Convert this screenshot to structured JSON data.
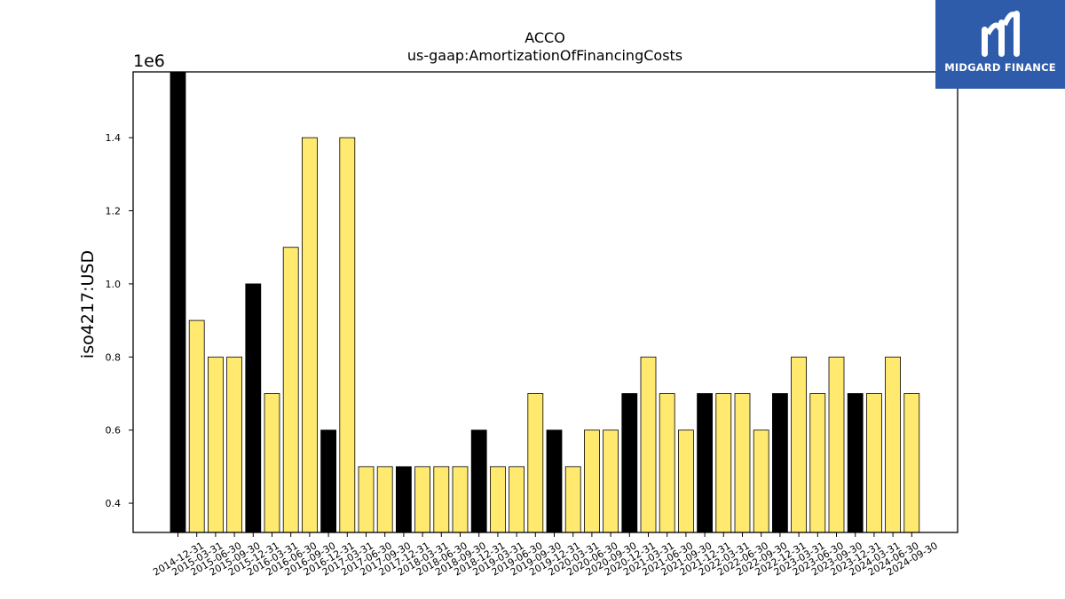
{
  "chart_data": {
    "type": "bar",
    "title": "ACCO",
    "subtitle": "us-gaap:AmortizationOfFinancingCosts",
    "ylabel": "iso4217:USD",
    "xlabel": "",
    "offset_label": "1e6",
    "scale": 1000000,
    "ylim": [
      320000,
      1580000
    ],
    "yticks": [
      0.4,
      0.6,
      0.8,
      1.0,
      1.2,
      1.4
    ],
    "grid": false,
    "colors": {
      "quarter": "#ffe96e",
      "year_end": "#000000",
      "edge": "#000000"
    },
    "categories": [
      "2014-12-31",
      "2015-03-31",
      "2015-06-30",
      "2015-09-30",
      "2015-12-31",
      "2016-03-31",
      "2016-06-30",
      "2016-09-30",
      "2016-12-31",
      "2017-03-31",
      "2017-06-30",
      "2017-09-30",
      "2017-12-31",
      "2018-03-31",
      "2018-06-30",
      "2018-09-30",
      "2018-12-31",
      "2019-03-31",
      "2019-06-30",
      "2019-09-30",
      "2019-12-31",
      "2020-03-31",
      "2020-06-30",
      "2020-09-30",
      "2020-12-31",
      "2021-03-31",
      "2021-06-30",
      "2021-09-30",
      "2021-12-31",
      "2022-03-31",
      "2022-06-30",
      "2022-09-30",
      "2022-12-31",
      "2023-03-31",
      "2023-06-30",
      "2023-09-30",
      "2023-12-31",
      "2024-03-31",
      "2024-06-30",
      "2024-09-30"
    ],
    "values": [
      1600000,
      900000,
      800000,
      800000,
      1000000,
      700000,
      1100000,
      1400000,
      600000,
      1400000,
      500000,
      500000,
      500000,
      500000,
      500000,
      500000,
      600000,
      500000,
      500000,
      700000,
      600000,
      500000,
      600000,
      600000,
      700000,
      800000,
      700000,
      600000,
      700000,
      700000,
      700000,
      600000,
      700000,
      800000,
      700000,
      800000,
      700000,
      700000,
      800000,
      700000
    ]
  },
  "logo": {
    "text": "MIDGARD FINANCE",
    "background": "#2f5caa"
  }
}
